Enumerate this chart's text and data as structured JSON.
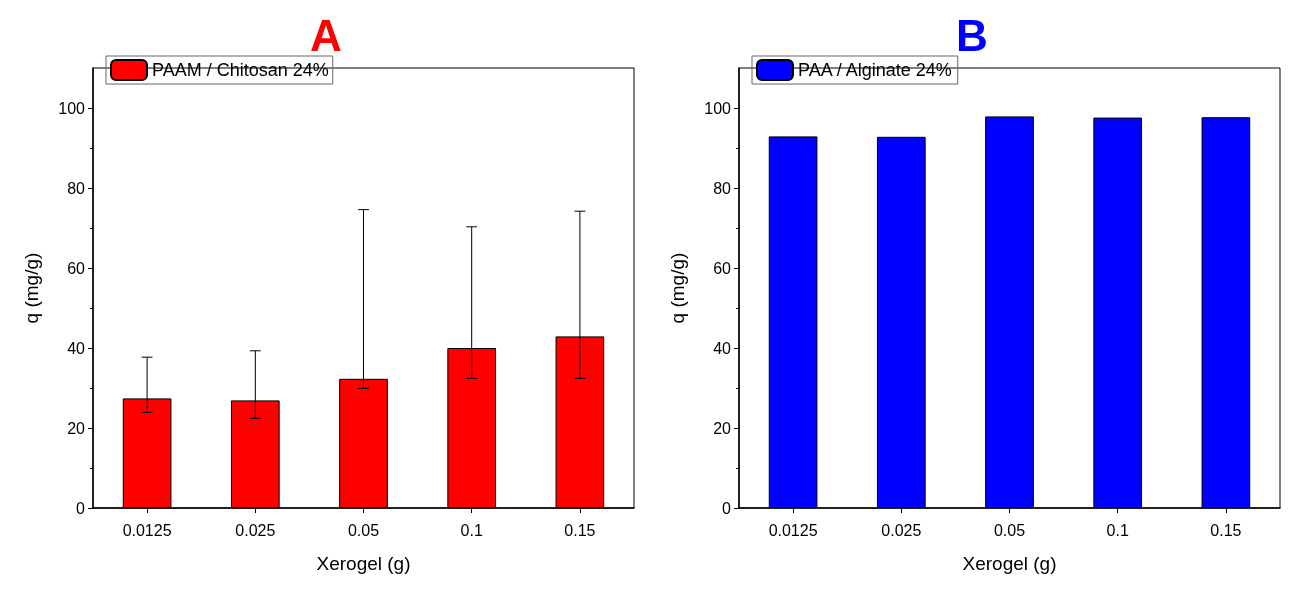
{
  "chart_data": [
    {
      "type": "bar",
      "title": "A",
      "xlabel": "Xerogel (g)",
      "ylabel": "q (mg/g)",
      "categories": [
        "0.0125",
        "0.025",
        "0.05",
        "0.1",
        "0.15"
      ],
      "series": [
        {
          "name": "PAAM / Chitosan 24%",
          "color": "#ff0000",
          "values": [
            27.4,
            26.9,
            32.3,
            40.0,
            42.9
          ],
          "errors": [
            [
              23.9,
              37.7
            ],
            [
              22.4,
              39.3
            ],
            [
              29.9,
              74.6
            ],
            [
              32.4,
              70.3
            ],
            [
              32.4,
              74.2
            ]
          ]
        }
      ],
      "ylim": [
        0,
        110
      ],
      "yticks": [
        0,
        20,
        40,
        60,
        80,
        100
      ],
      "grid": false,
      "legend": "top left"
    },
    {
      "type": "bar",
      "title": "B",
      "xlabel": "Xerogel (g)",
      "ylabel": "q (mg/g)",
      "categories": [
        "0.0125",
        "0.025",
        "0.05",
        "0.1",
        "0.15"
      ],
      "series": [
        {
          "name": "PAA / Alginate 24%",
          "color": "#0000ff",
          "values": [
            92.9,
            92.8,
            97.9,
            97.6,
            97.7
          ]
        }
      ],
      "ylim": [
        0,
        110
      ],
      "yticks": [
        0,
        20,
        40,
        60,
        80,
        100
      ],
      "grid": false,
      "legend": "top left"
    }
  ]
}
